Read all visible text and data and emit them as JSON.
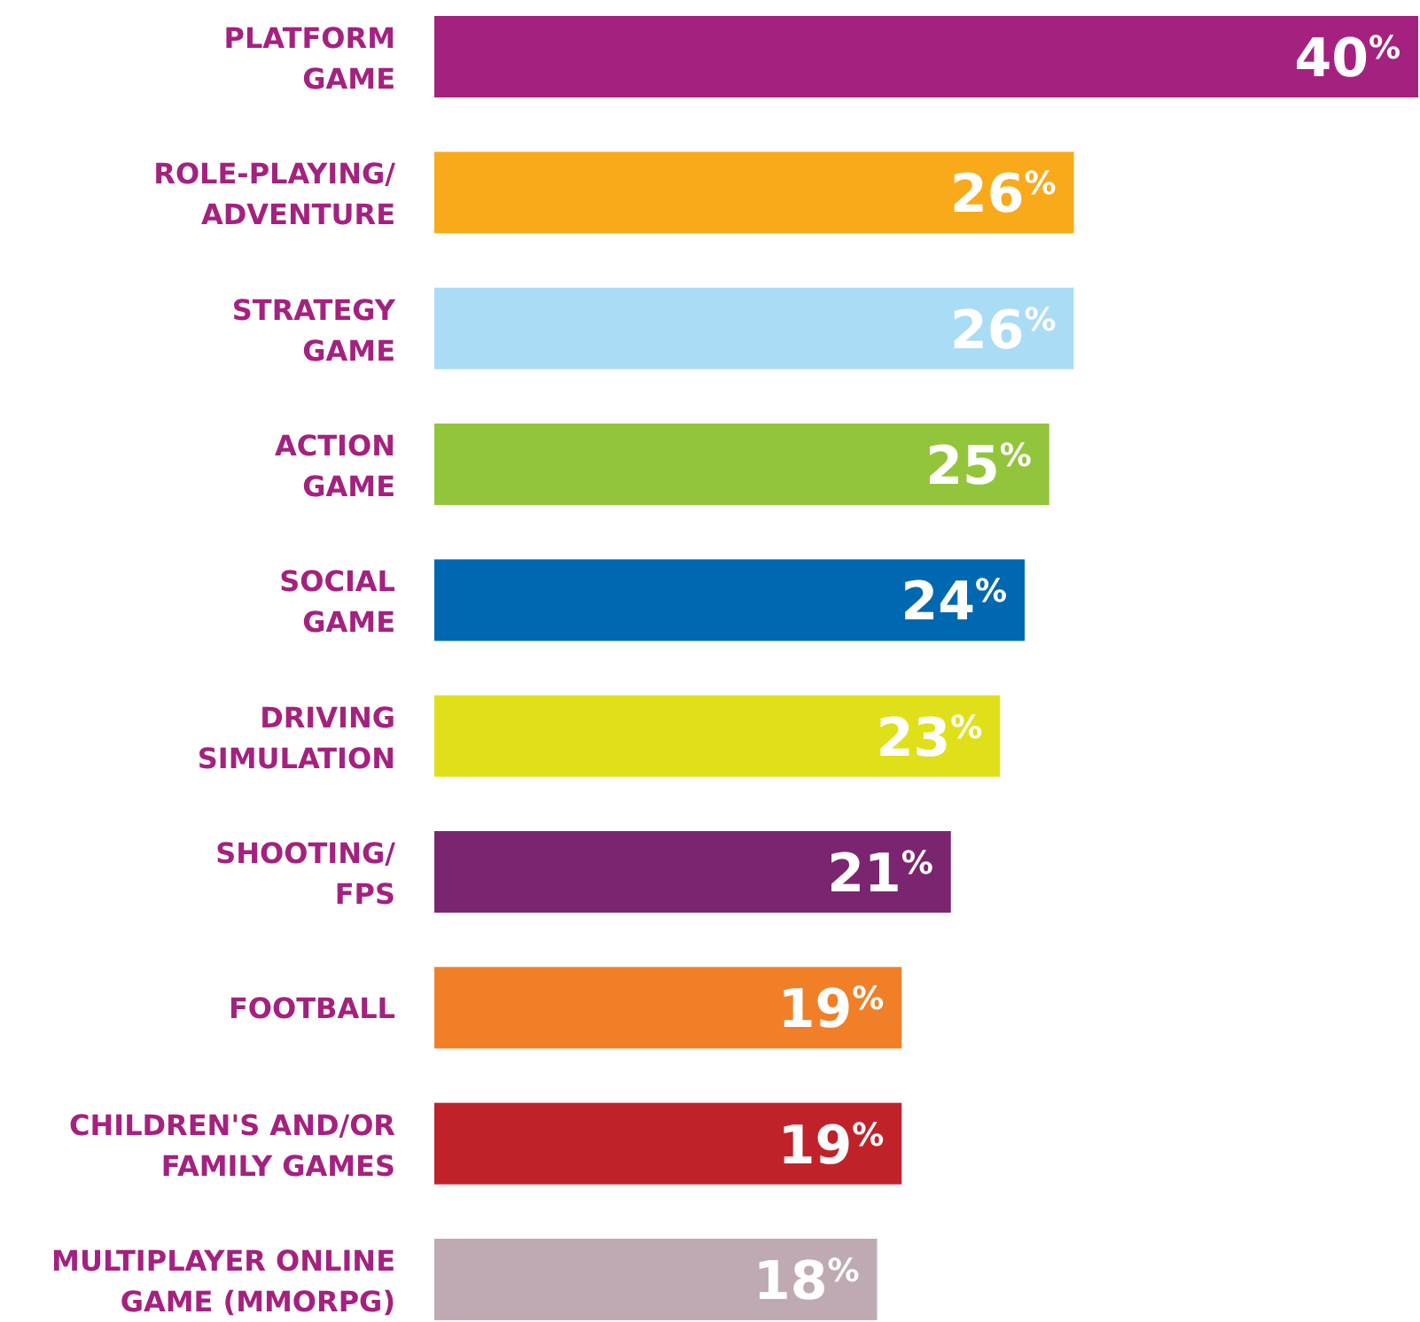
{
  "chart_data": {
    "type": "bar",
    "orientation": "horizontal",
    "categories": [
      "PLATFORM\nGAME",
      "ROLE-PLAYING/\nADVENTURE",
      "STRATEGY\nGAME",
      "ACTION\nGAME",
      "SOCIAL\nGAME",
      "DRIVING\nSIMULATION",
      "SHOOTING/\nFPS",
      "FOOTBALL",
      "CHILDREN'S AND/OR\nFAMILY GAMES",
      "MULTIPLAYER ONLINE\nGAME (MMORPG)"
    ],
    "values": [
      40,
      26,
      26,
      25,
      24,
      23,
      21,
      19,
      19,
      18
    ],
    "colors": [
      "#a5217f",
      "#f8aa1a",
      "#aadcf5",
      "#93c53c",
      "#0068b1",
      "#e0e01a",
      "#7b2570",
      "#f07f28",
      "#c1222a",
      "#bfaab3"
    ],
    "value_labels": [
      "40$^{%}$",
      "26$^{%}$",
      "26$^{%}$",
      "25$^{%}$",
      "24$^{%}$",
      "23$^{%}$",
      "21$^{%}$",
      "19$^{%}$",
      "19$^{%}$",
      "18$^{%}$"
    ]
  }
}
